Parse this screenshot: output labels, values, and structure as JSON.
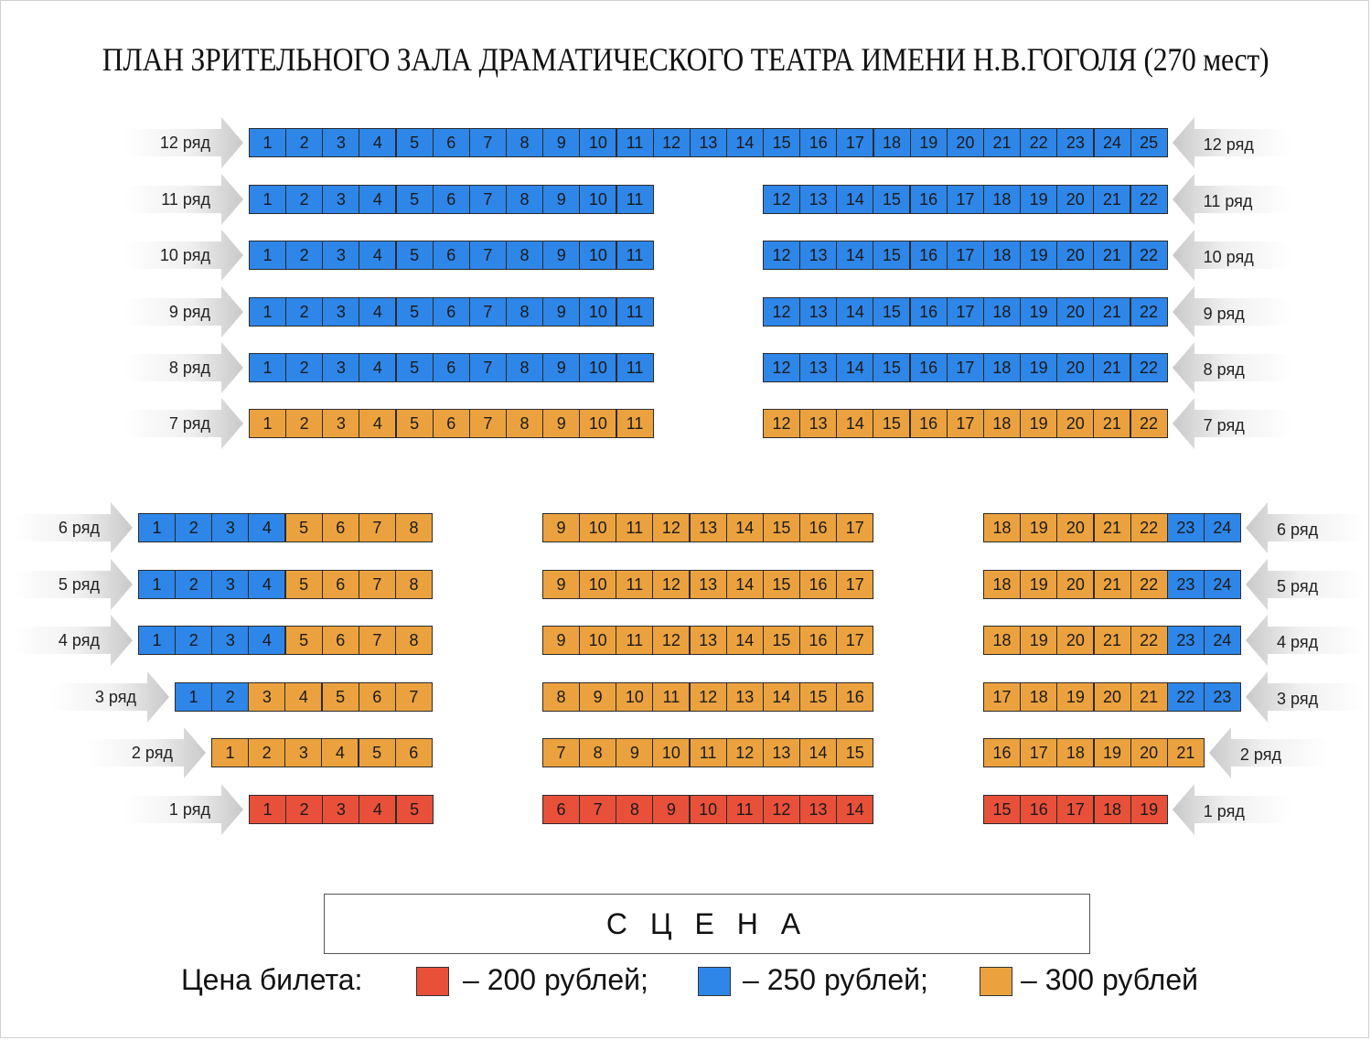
{
  "title": "ПЛАН ЗРИТЕЛЬНОГО ЗАЛА ДРАМАТИЧЕСКОГО ТЕАТРА ИМЕНИ Н.В.ГОГОЛЯ (270 мест)",
  "colors": {
    "red": "#e8503a",
    "blue": "#2e86e8",
    "orange": "#eba23e"
  },
  "stage_label": "С Ц Е Н А",
  "legend": {
    "title": "Цена билета:",
    "items": [
      {
        "color": "red",
        "text": "– 200 рублей;"
      },
      {
        "color": "blue",
        "text": "– 250 рублей;"
      },
      {
        "color": "orange",
        "text": "– 300 рублей"
      }
    ]
  },
  "rows": [
    {
      "label": "12 ряд",
      "segments": [
        {
          "seats": [
            [
              1,
              25,
              "blue"
            ]
          ]
        }
      ]
    },
    {
      "label": "11 ряд",
      "segments": [
        {
          "seats": [
            [
              1,
              11,
              "blue"
            ]
          ]
        },
        {
          "seats": [
            [
              12,
              22,
              "blue"
            ]
          ]
        }
      ]
    },
    {
      "label": "10 ряд",
      "segments": [
        {
          "seats": [
            [
              1,
              11,
              "blue"
            ]
          ]
        },
        {
          "seats": [
            [
              12,
              22,
              "blue"
            ]
          ]
        }
      ]
    },
    {
      "label": "9 ряд",
      "segments": [
        {
          "seats": [
            [
              1,
              11,
              "blue"
            ]
          ]
        },
        {
          "seats": [
            [
              12,
              22,
              "blue"
            ]
          ]
        }
      ]
    },
    {
      "label": "8 ряд",
      "segments": [
        {
          "seats": [
            [
              1,
              11,
              "blue"
            ]
          ]
        },
        {
          "seats": [
            [
              12,
              22,
              "blue"
            ]
          ]
        }
      ]
    },
    {
      "label": "7 ряд",
      "segments": [
        {
          "seats": [
            [
              1,
              11,
              "orange"
            ]
          ]
        },
        {
          "seats": [
            [
              12,
              22,
              "orange"
            ]
          ]
        }
      ]
    },
    {
      "label": "6 ряд",
      "segments": [
        {
          "seats": [
            [
              1,
              4,
              "blue"
            ],
            [
              5,
              8,
              "orange"
            ]
          ]
        },
        {
          "seats": [
            [
              9,
              17,
              "orange"
            ]
          ]
        },
        {
          "seats": [
            [
              18,
              22,
              "orange"
            ],
            [
              23,
              24,
              "blue"
            ]
          ]
        }
      ]
    },
    {
      "label": "5 ряд",
      "segments": [
        {
          "seats": [
            [
              1,
              4,
              "blue"
            ],
            [
              5,
              8,
              "orange"
            ]
          ]
        },
        {
          "seats": [
            [
              9,
              17,
              "orange"
            ]
          ]
        },
        {
          "seats": [
            [
              18,
              22,
              "orange"
            ],
            [
              23,
              24,
              "blue"
            ]
          ]
        }
      ]
    },
    {
      "label": "4 ряд",
      "segments": [
        {
          "seats": [
            [
              1,
              4,
              "blue"
            ],
            [
              5,
              8,
              "orange"
            ]
          ]
        },
        {
          "seats": [
            [
              9,
              17,
              "orange"
            ]
          ]
        },
        {
          "seats": [
            [
              18,
              22,
              "orange"
            ],
            [
              23,
              24,
              "blue"
            ]
          ]
        }
      ]
    },
    {
      "label": "3 ряд",
      "segments": [
        {
          "seats": [
            [
              1,
              2,
              "blue"
            ],
            [
              3,
              7,
              "orange"
            ]
          ]
        },
        {
          "seats": [
            [
              8,
              16,
              "orange"
            ]
          ]
        },
        {
          "seats": [
            [
              17,
              21,
              "orange"
            ],
            [
              22,
              23,
              "blue"
            ]
          ]
        }
      ]
    },
    {
      "label": "2 ряд",
      "segments": [
        {
          "seats": [
            [
              1,
              6,
              "orange"
            ]
          ]
        },
        {
          "seats": [
            [
              7,
              15,
              "orange"
            ]
          ]
        },
        {
          "seats": [
            [
              16,
              21,
              "orange"
            ]
          ]
        }
      ]
    },
    {
      "label": "1 ряд",
      "segments": [
        {
          "seats": [
            [
              1,
              5,
              "red"
            ]
          ]
        },
        {
          "seats": [
            [
              6,
              14,
              "red"
            ]
          ]
        },
        {
          "seats": [
            [
              15,
              19,
              "red"
            ]
          ]
        }
      ]
    }
  ]
}
